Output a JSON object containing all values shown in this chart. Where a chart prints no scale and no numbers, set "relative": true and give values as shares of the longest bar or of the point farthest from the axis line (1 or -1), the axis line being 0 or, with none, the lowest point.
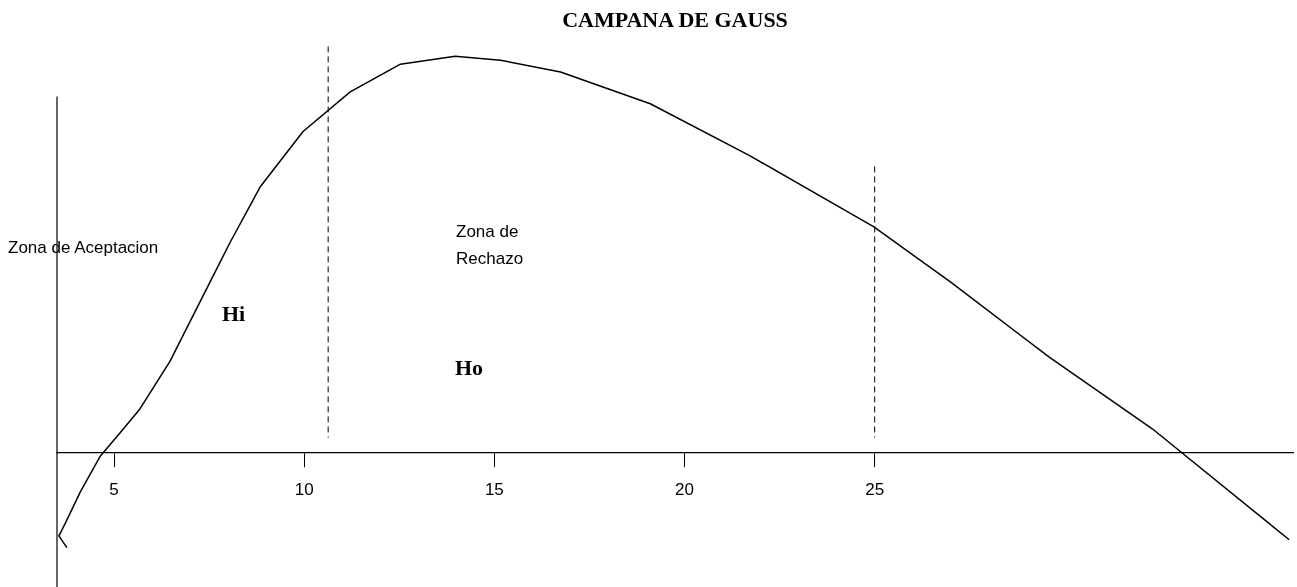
{
  "chart_data": {
    "type": "line",
    "title": "CAMPANA DE GAUSS",
    "relative": true,
    "x": [
      3.76,
      3.55,
      3.71,
      4.11,
      4.63,
      5.16,
      5.68,
      6.47,
      7.26,
      8.05,
      8.84,
      9.97,
      11.21,
      12.53,
      13.97,
      15.16,
      16.74,
      19.1,
      21.7,
      24.97,
      27.0,
      29.6,
      32.3,
      35.9
    ],
    "series": [
      {
        "color": "#000000",
        "values": [
          -0.24,
          -0.21,
          -0.18,
          -0.1,
          -0.01,
          0.05,
          0.11,
          0.23,
          0.38,
          0.53,
          0.67,
          0.81,
          0.91,
          0.98,
          1,
          0.99,
          0.96,
          0.88,
          0.75,
          0.57,
          0.43,
          0.24,
          0.06,
          -0.22
        ]
      }
    ],
    "xlim": [
      3.5,
      36
    ],
    "xticks": [
      5,
      10,
      15,
      20,
      25
    ],
    "ref_lines": [
      {
        "axis": "x",
        "value": 10.63,
        "line_style": "dashed",
        "color": "#000000"
      },
      {
        "axis": "x",
        "value": 25,
        "line_style": "dashed",
        "color": "#000000"
      }
    ],
    "annotations": [
      "Zona de Aceptacion",
      "Hi",
      "Zona de\nRechazo",
      "Ho"
    ],
    "grid": false,
    "legend": false,
    "marker": "none",
    "line_style": "solid"
  }
}
